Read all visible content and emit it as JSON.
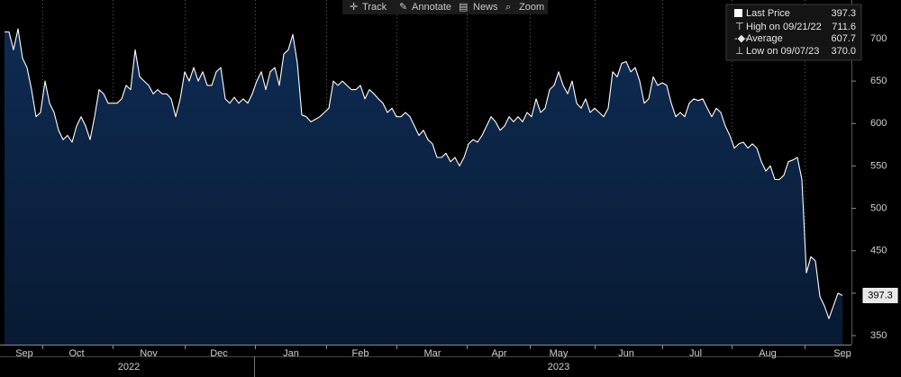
{
  "toolbar": [
    "Track",
    "Annotate",
    "News",
    "Zoom"
  ],
  "chart_data": {
    "type": "area",
    "legend": [
      {
        "label": "Last Price",
        "value": "397.3"
      },
      {
        "label": "High on 09/21/22",
        "value": "711.6"
      },
      {
        "label": "Average",
        "value": "607.7"
      },
      {
        "label": "Low on 09/07/23",
        "value": "370.0"
      }
    ],
    "months": [
      "Sep",
      "Oct",
      "Nov",
      "Dec",
      "Jan",
      "Feb",
      "Mar",
      "Apr",
      "May",
      "Jun",
      "Jul",
      "Aug",
      "Sep"
    ],
    "years": [
      "2022",
      "2023"
    ],
    "series": [
      {
        "name": "Last Price",
        "color": "#ffffff",
        "fill": "#0c2547",
        "values": [
          708,
          708,
          687,
          711.6,
          677,
          666,
          640,
          608,
          613,
          650,
          624,
          613,
          592,
          581,
          586,
          578,
          597,
          608,
          597,
          581,
          608,
          640,
          635,
          624,
          624,
          624,
          629,
          645,
          640,
          687,
          655,
          650,
          645,
          635,
          640,
          635,
          635,
          629,
          608,
          629,
          661,
          650,
          666,
          650,
          661,
          645,
          645,
          661,
          666,
          629,
          624,
          631,
          624,
          629,
          624,
          635,
          650,
          661,
          640,
          661,
          666,
          645,
          682,
          687,
          705,
          671,
          610,
          608,
          602,
          605,
          608,
          613,
          618,
          650,
          645,
          650,
          645,
          640,
          640,
          645,
          629,
          640,
          635,
          629,
          624,
          613,
          618,
          608,
          608,
          613,
          608,
          597,
          586,
          592,
          581,
          576,
          560,
          560,
          565,
          555,
          560,
          550,
          560,
          576,
          581,
          578,
          586,
          597,
          608,
          602,
          592,
          597,
          608,
          602,
          608,
          602,
          613,
          608,
          629,
          613,
          618,
          640,
          645,
          661,
          645,
          635,
          650,
          624,
          618,
          629,
          613,
          618,
          613,
          608,
          618,
          661,
          655,
          671,
          673,
          661,
          666,
          650,
          624,
          629,
          655,
          645,
          648,
          645,
          624,
          608,
          613,
          608,
          624,
          629,
          627,
          629,
          618,
          608,
          618,
          613,
          597,
          586,
          571,
          576,
          578,
          571,
          576,
          571,
          555,
          544,
          550,
          534,
          534,
          539,
          555,
          557,
          560,
          534,
          424,
          443,
          438,
          396,
          385,
          370,
          385,
          400,
          397.3
        ]
      }
    ],
    "ylim": [
      339.4,
      745.6
    ],
    "yticks": [
      350,
      400,
      450,
      500,
      550,
      600,
      650,
      700
    ]
  }
}
